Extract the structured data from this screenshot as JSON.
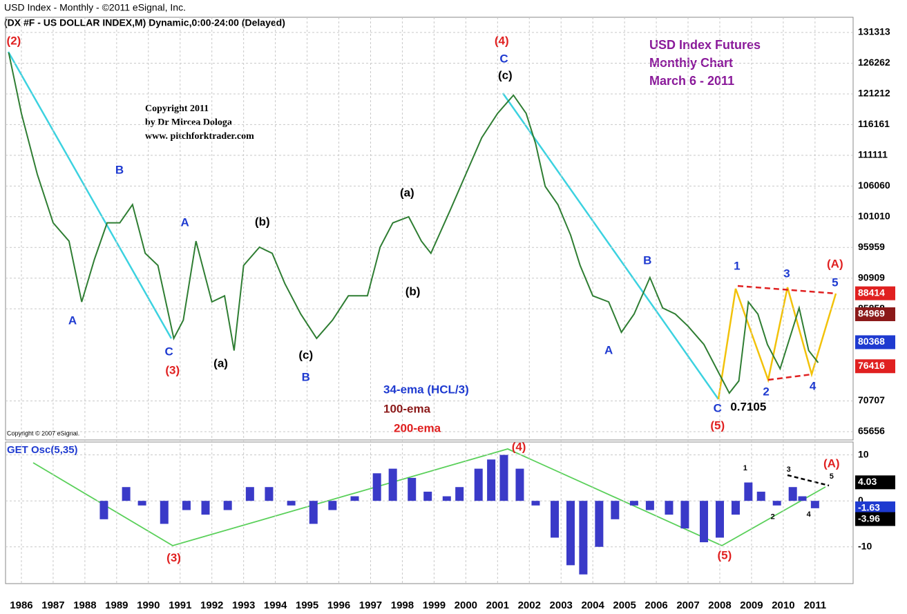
{
  "header": {
    "title": "USD Index - Monthly - ©2011 eSignal, Inc.",
    "subtitle": "(DX #F - US DOLLAR INDEX,M) Dynamic,0:00-24:00 (Delayed)",
    "footer": "Copyright © 2007 eSignal."
  },
  "chart_data": [
    {
      "type": "line",
      "title_lines": [
        "USD Index Futures",
        "Monthly Chart",
        "March 6 - 2011"
      ],
      "copyright": [
        "Copyright 2011",
        "by Dr Mircea Dologa",
        "www. pitchforktrader.com"
      ],
      "legend": [
        {
          "name": "34-ema (HCL/3)",
          "color": "#1e3ad0"
        },
        {
          "name": "100-ema",
          "color": "#8b1a1a"
        },
        {
          "name": "200-ema",
          "color": "#e02020"
        }
      ],
      "xlim": [
        1985.5,
        2012.2
      ],
      "xticks": [
        1986,
        1987,
        1988,
        1989,
        1990,
        1991,
        1992,
        1993,
        1994,
        1995,
        1996,
        1997,
        1998,
        1999,
        2000,
        2001,
        2002,
        2003,
        2004,
        2005,
        2006,
        2007,
        2008,
        2009,
        2010,
        2011
      ],
      "ylim": [
        64520,
        131544
      ],
      "yticks": [
        131313,
        126262,
        121212,
        116161,
        111111,
        106060,
        101010,
        95959,
        90909,
        85858,
        70707,
        65656
      ],
      "grid": true,
      "series": [
        {
          "color": "#2e7d32",
          "x": [
            1985.6,
            1986.0,
            1986.5,
            1987.0,
            1987.5,
            1987.9,
            1988.3,
            1988.7,
            1989.1,
            1989.5,
            1989.9,
            1990.3,
            1990.8,
            1991.1,
            1991.5,
            1992.0,
            1992.4,
            1992.7,
            1993.0,
            1993.5,
            1993.9,
            1994.3,
            1994.8,
            1995.3,
            1995.8,
            1996.3,
            1996.9,
            1997.3,
            1997.7,
            1998.2,
            1998.6,
            1998.9,
            1999.5,
            2000.0,
            2000.5,
            2001.0,
            2001.5,
            2001.9,
            2002.2,
            2002.5,
            2002.9,
            2003.3,
            2003.6,
            2004.0,
            2004.5,
            2004.9,
            2005.3,
            2005.8,
            2006.2,
            2006.6,
            2007.0,
            2007.5,
            2008.0,
            2008.3,
            2008.6,
            2008.9,
            2009.2,
            2009.5,
            2009.9,
            2010.2,
            2010.5,
            2010.8,
            2011.1
          ],
          "values": [
            128000,
            118000,
            108000,
            100000,
            97000,
            87000,
            94000,
            100000,
            100000,
            103000,
            95000,
            93000,
            81000,
            84000,
            97000,
            87000,
            88000,
            79000,
            93000,
            96000,
            95000,
            90000,
            85000,
            81000,
            84000,
            88000,
            88000,
            96000,
            100000,
            101000,
            97000,
            95000,
            102000,
            108000,
            114000,
            118000,
            121000,
            118000,
            113000,
            106000,
            103000,
            98000,
            93000,
            88000,
            87000,
            82000,
            85000,
            91000,
            86000,
            85000,
            83000,
            80000,
            75000,
            72000,
            74000,
            87000,
            85000,
            80000,
            76000,
            81000,
            86000,
            79000,
            77000
          ]
        }
      ],
      "value_boxes": [
        {
          "value": 88414,
          "color": "#e02020"
        },
        {
          "value": 84969,
          "color": "#8b1a1a"
        },
        {
          "value": 80368,
          "color": "#1e3ad0"
        },
        {
          "value": 76416,
          "color": "#e02020"
        }
      ],
      "annotations": [
        {
          "text": "(2)",
          "x": 1985.76,
          "y": 129840,
          "color": "#e02020"
        },
        {
          "text": "B",
          "x": 1989.09,
          "y": 108600,
          "color": "#1e3ad0"
        },
        {
          "text": "A",
          "x": 1987.61,
          "y": 83830,
          "color": "#1e3ad0"
        },
        {
          "text": "C",
          "x": 1990.65,
          "y": 78720,
          "color": "#1e3ad0"
        },
        {
          "text": "(3)",
          "x": 1990.76,
          "y": 75650,
          "color": "#e02020"
        },
        {
          "text": "A",
          "x": 1991.15,
          "y": 99960,
          "color": "#1e3ad0"
        },
        {
          "text": "(a)",
          "x": 1992.28,
          "y": 76790,
          "color": "#000000"
        },
        {
          "text": "(b)",
          "x": 1993.59,
          "y": 100080,
          "color": "#000000"
        },
        {
          "text": "(c)",
          "x": 1994.96,
          "y": 78150,
          "color": "#000000"
        },
        {
          "text": "B",
          "x": 1994.96,
          "y": 74520,
          "color": "#1e3ad0"
        },
        {
          "text": "(a)",
          "x": 1998.15,
          "y": 104850,
          "color": "#000000"
        },
        {
          "text": "(b)",
          "x": 1998.33,
          "y": 88600,
          "color": "#000000"
        },
        {
          "text": "(4)",
          "x": 2001.13,
          "y": 129840,
          "color": "#e02020"
        },
        {
          "text": "C",
          "x": 2001.2,
          "y": 126890,
          "color": "#1e3ad0"
        },
        {
          "text": "(c)",
          "x": 2001.24,
          "y": 124160,
          "color": "#000000"
        },
        {
          "text": "B",
          "x": 2005.72,
          "y": 93720,
          "color": "#1e3ad0"
        },
        {
          "text": "A",
          "x": 2004.5,
          "y": 78950,
          "color": "#1e3ad0"
        },
        {
          "text": "C",
          "x": 2007.93,
          "y": 69400,
          "color": "#1e3ad0"
        },
        {
          "text": "(5)",
          "x": 2007.93,
          "y": 66560,
          "color": "#e02020"
        },
        {
          "text": "0.7105",
          "x": 2008.9,
          "y": 69630,
          "color": "#000000"
        },
        {
          "text": "1",
          "x": 2008.54,
          "y": 92800,
          "color": "#1e3ad0"
        },
        {
          "text": "3",
          "x": 2010.11,
          "y": 91560,
          "color": "#1e3ad0"
        },
        {
          "text": "2",
          "x": 2009.46,
          "y": 72130,
          "color": "#1e3ad0"
        },
        {
          "text": "4",
          "x": 2010.93,
          "y": 73040,
          "color": "#1e3ad0"
        },
        {
          "text": "5",
          "x": 2011.63,
          "y": 90080,
          "color": "#1e3ad0"
        },
        {
          "text": "(A)",
          "x": 2011.63,
          "y": 93150,
          "color": "#e02020"
        }
      ]
    },
    {
      "type": "bar",
      "title": "GET Osc(5,35)",
      "color": "#3a3ac8",
      "xlim": [
        1985.5,
        2012.2
      ],
      "ylim": [
        -18,
        12.8
      ],
      "yticks": [
        10,
        0,
        -10
      ],
      "x": [
        1988.6,
        1989.3,
        1989.8,
        1990.5,
        1991.2,
        1991.8,
        1992.5,
        1993.2,
        1993.8,
        1994.5,
        1995.2,
        1995.8,
        1996.5,
        1997.2,
        1997.7,
        1998.3,
        1998.8,
        1999.4,
        1999.8,
        2000.4,
        2000.8,
        2001.2,
        2001.7,
        2002.2,
        2002.8,
        2003.3,
        2003.7,
        2004.2,
        2004.7,
        2005.3,
        2005.8,
        2006.4,
        2006.9,
        2007.5,
        2008.0,
        2008.5,
        2008.9,
        2009.3,
        2009.8,
        2010.3,
        2010.6,
        2011.0
      ],
      "values": [
        -4,
        3,
        -1,
        -5,
        -2,
        -3,
        -2,
        3,
        3,
        -1,
        -5,
        -2,
        1,
        6,
        7,
        5,
        2,
        1,
        3,
        7,
        9,
        10,
        7,
        -1,
        -8,
        -14,
        -16,
        -10,
        -4,
        -1,
        -2,
        -3,
        -6,
        -9,
        -8,
        -3,
        4,
        2,
        -1,
        3,
        1,
        -1.6
      ],
      "value_boxes": [
        {
          "value": 4.03,
          "color": "#000000"
        },
        {
          "value": -1.63,
          "color": "#1e3ad0"
        },
        {
          "value": -3.96,
          "color": "#000000"
        }
      ],
      "annotations": [
        {
          "text": "(3)",
          "x": 1990.8,
          "y": -12.5,
          "color": "#e02020"
        },
        {
          "text": "(4)",
          "x": 2001.67,
          "y": 11.6,
          "color": "#e02020"
        },
        {
          "text": "(5)",
          "x": 2008.15,
          "y": -12,
          "color": "#e02020"
        },
        {
          "text": "(A)",
          "x": 2011.52,
          "y": 8,
          "color": "#e02020"
        },
        {
          "text": "1",
          "x": 2008.8,
          "y": 7.1,
          "color": "#000000"
        },
        {
          "text": "3",
          "x": 2010.17,
          "y": 6.8,
          "color": "#000000"
        },
        {
          "text": "5",
          "x": 2011.52,
          "y": 5.3,
          "color": "#000000"
        },
        {
          "text": "2",
          "x": 2009.67,
          "y": -3.5,
          "color": "#000000"
        },
        {
          "text": "4",
          "x": 2010.8,
          "y": -3,
          "color": "#000000"
        }
      ]
    }
  ]
}
